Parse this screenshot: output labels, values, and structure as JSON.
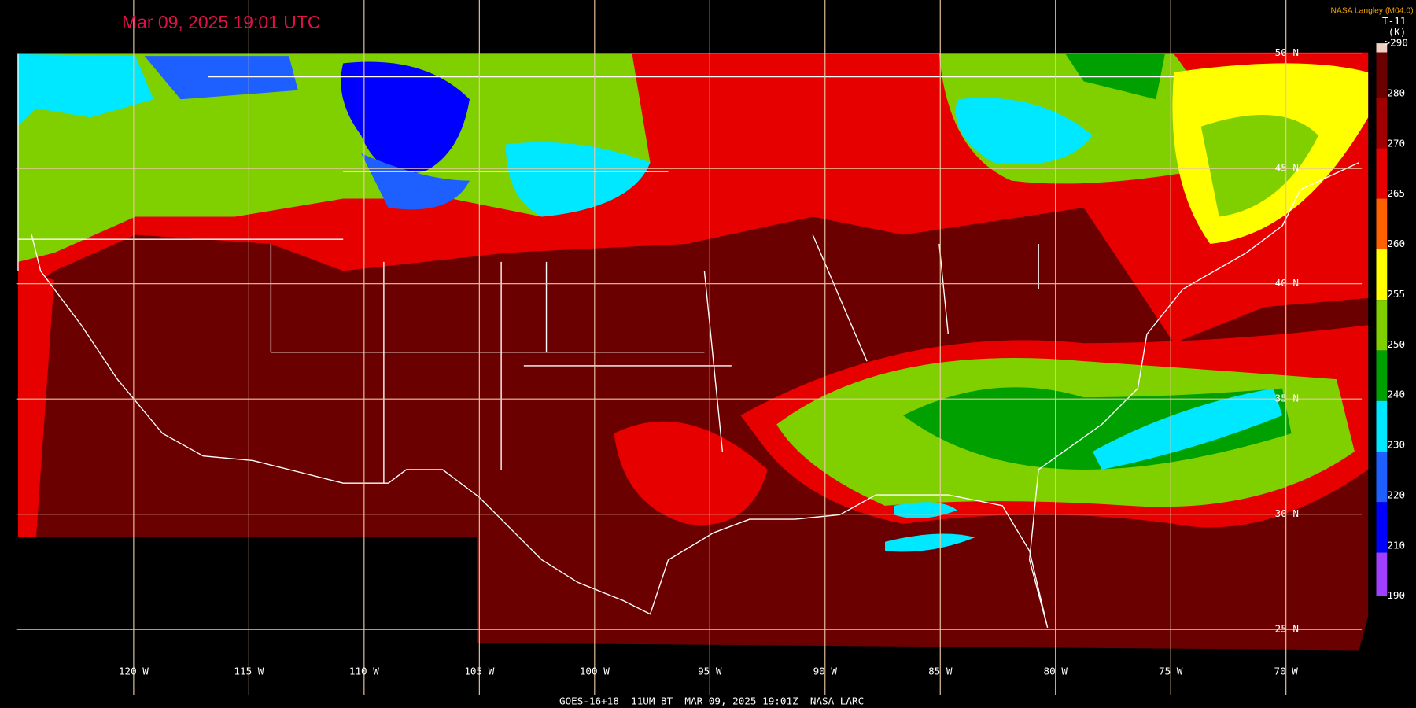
{
  "header": {
    "title": "Mar 09, 2025 19:01 UTC",
    "credit": "NASA Langley (M04.0)"
  },
  "legend": {
    "title": "T-11",
    "unit": "(K)",
    "labels": [
      ">290",
      "280",
      "270",
      "265",
      "260",
      "255",
      "250",
      "240",
      "230",
      "220",
      "210",
      "190"
    ]
  },
  "grid": {
    "latitudes": [
      "50 N",
      "45 N",
      "40 N",
      "35 N",
      "30 N",
      "25 N"
    ],
    "longitudes": [
      "120 W",
      "115 W",
      "110 W",
      "105 W",
      "100 W",
      "95 W",
      "90 W",
      "85 W",
      "80 W",
      "75 W",
      "70 W"
    ]
  },
  "footer": "GOES-16+18  11UM BT  MAR 09, 2025 19:01Z  NASA LARC"
}
